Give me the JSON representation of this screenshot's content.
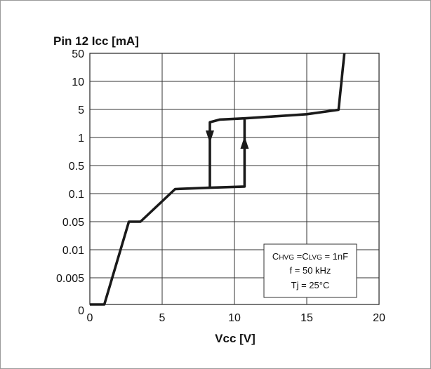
{
  "chart_data": {
    "type": "line",
    "title": "",
    "ylabel": "Pin 12 Icc [mA]",
    "xlabel": "Vcc [V]",
    "xlim": [
      0,
      20
    ],
    "x_ticks": [
      "0",
      "5",
      "10",
      "15",
      "20"
    ],
    "y_scale": "log (non-uniform tick spacing)",
    "y_ticks": [
      "0",
      "0.005",
      "0.01",
      "0.05",
      "0.1",
      "0.5",
      "1",
      "5",
      "10",
      "50"
    ],
    "grid": true,
    "series": [
      {
        "points": [
          {
            "x": 0,
            "y": 0
          },
          {
            "x": 1.0,
            "y": 0
          },
          {
            "x": 2.7,
            "y": 0.05
          },
          {
            "x": 3.5,
            "y": 0.05
          },
          {
            "x": 5.9,
            "y": 0.13
          },
          {
            "x": 8.3,
            "y": 0.14
          },
          {
            "x": 10.7,
            "y": 0.15
          },
          {
            "x": 10.7,
            "y": 3.0
          },
          {
            "x": 15.0,
            "y": 3.8
          },
          {
            "x": 17.2,
            "y": 4.9
          },
          {
            "x": 17.6,
            "y": 50
          }
        ]
      },
      {
        "points": [
          {
            "x": 8.3,
            "y": 0.14
          },
          {
            "x": 8.3,
            "y": 2.4
          },
          {
            "x": 9.0,
            "y": 2.8
          },
          {
            "x": 10.7,
            "y": 3.0
          }
        ]
      }
    ],
    "arrows": [
      {
        "x": 8.3,
        "y": 1.0,
        "direction": "down"
      },
      {
        "x": 10.7,
        "y": 0.9,
        "direction": "up"
      }
    ],
    "annotation": {
      "line1_prefix": "C",
      "line1_sub1": "HVG",
      "line1_mid": " =C",
      "line1_sub2": "LVG",
      "line1_suffix": " = 1nF",
      "line2": "f = 50 kHz",
      "line3": "Tj = 25°C"
    }
  }
}
